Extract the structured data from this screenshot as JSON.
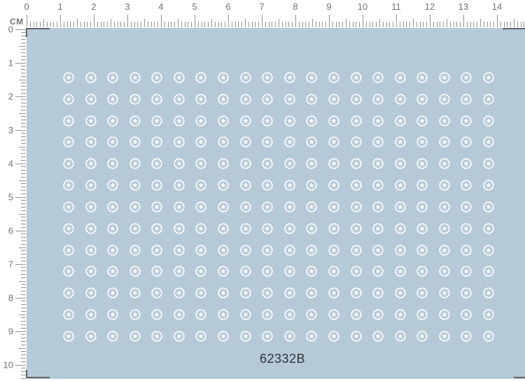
{
  "rulers": {
    "unit_label": "CM",
    "horizontal": {
      "labels": [
        "0",
        "1",
        "2",
        "3",
        "4",
        "5",
        "6",
        "7",
        "8",
        "9",
        "10",
        "11",
        "12",
        "13",
        "14"
      ],
      "minor_ticks_per_cm": 10
    },
    "vertical": {
      "labels": [
        "0",
        "1",
        "2",
        "3",
        "4",
        "5",
        "6",
        "7",
        "8",
        "9",
        "10"
      ],
      "minor_ticks_per_cm": 10
    },
    "tick_color": "#8e9396",
    "number_color": "#6f7275"
  },
  "sheet": {
    "panel_color": "#b6c9d7",
    "code": "62332B",
    "code_color": "#30343a",
    "decals": {
      "symbol": "circled-star",
      "color": "#ffffff",
      "rows": 13,
      "columns": 20,
      "count": 260
    }
  },
  "crop_mark_color": "#5f6468"
}
